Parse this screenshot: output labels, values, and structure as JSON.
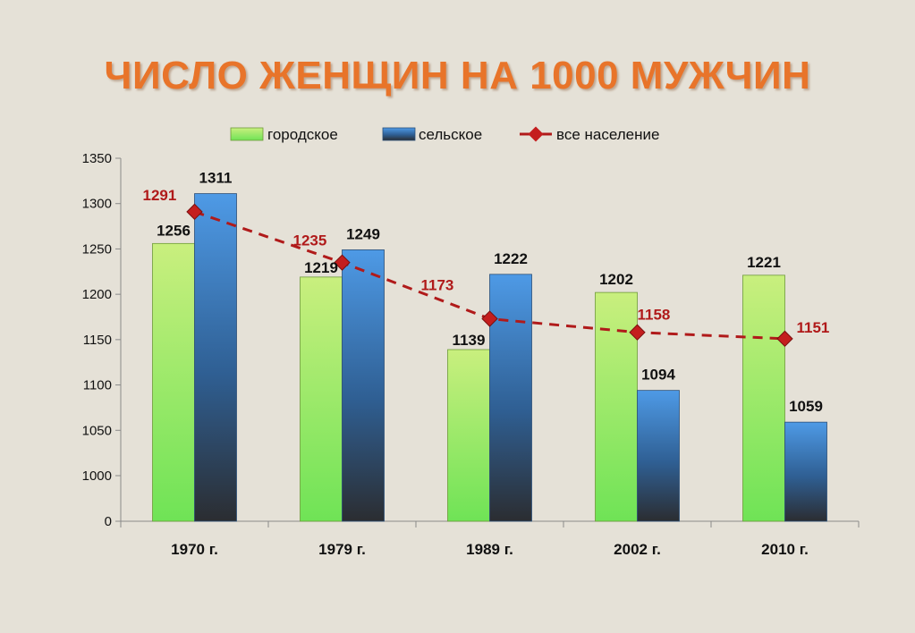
{
  "title": "ЧИСЛО ЖЕНЩИН НА 1000 МУЖЧИН",
  "colors": {
    "title": "#e8742a",
    "urban_top": "#c6f07a",
    "urban_bottom": "#7ed64a",
    "rural_top": "#4f9be8",
    "rural_bottom": "#2a2f36",
    "line": "#b01a1a",
    "marker": "#c41e1e"
  },
  "chart_data": {
    "type": "bar",
    "categories": [
      "1970 г.",
      "1979 г.",
      "1989 г.",
      "2002 г.",
      "2010 г."
    ],
    "series": [
      {
        "name": "городское",
        "type": "bar",
        "values": [
          1256,
          1219,
          1139,
          1202,
          1221
        ]
      },
      {
        "name": "сельское",
        "type": "bar",
        "values": [
          1311,
          1249,
          1222,
          1094,
          1059
        ]
      },
      {
        "name": "все население",
        "type": "line",
        "style": "dashed",
        "values": [
          1291,
          1235,
          1173,
          1158,
          1151
        ]
      }
    ],
    "y_ticks": [
      1350,
      1300,
      1250,
      1200,
      1150,
      1100,
      1050,
      1000,
      0
    ],
    "y_axis_break": "0 then 1000–1350",
    "legend": "top-center",
    "grid": false
  }
}
